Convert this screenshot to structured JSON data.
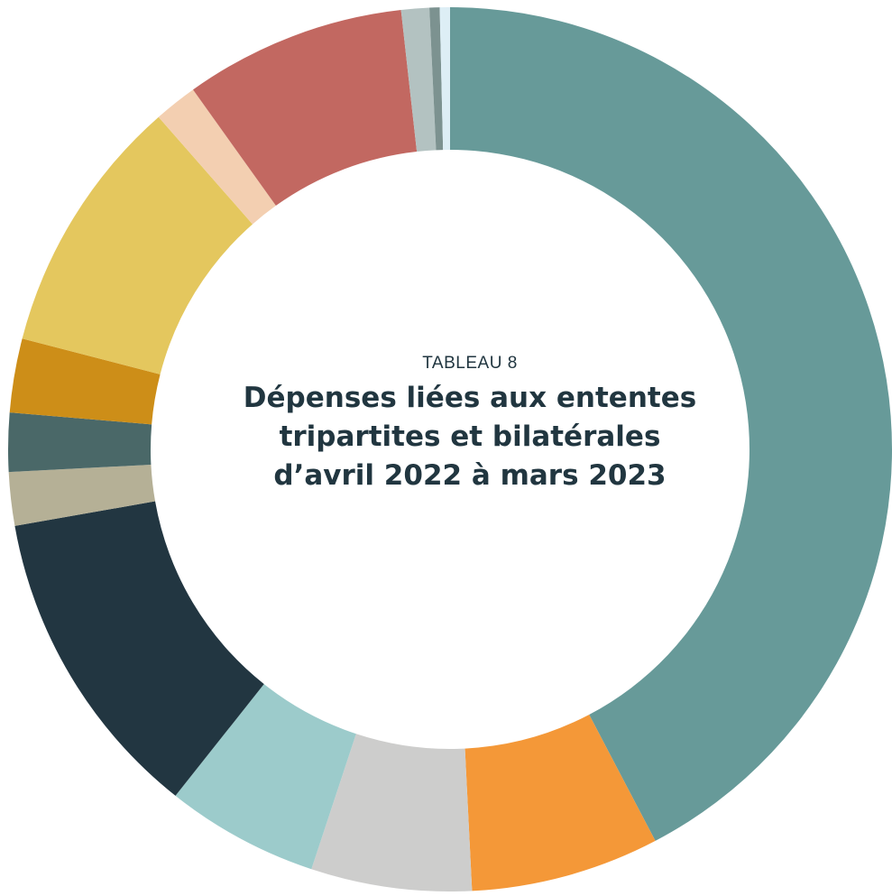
{
  "label_top": "TABLEAU 8",
  "title": "Dépenses liées aux ententes\ntripartites et bilatérales\nd’avril 2022 à mars 2023",
  "chart_data": {
    "type": "pie",
    "donut": true,
    "start_at": "top",
    "direction": "clockwise",
    "units": "percent of total (estimated)",
    "slices": [
      {
        "value": 45.4,
        "color": "#679a99"
      },
      {
        "value": 7.4,
        "color": "#f49838"
      },
      {
        "value": 6.3,
        "color": "#cdcdcc"
      },
      {
        "value": 6.0,
        "color": "#9ccbcb"
      },
      {
        "value": 12.4,
        "color": "#223641"
      },
      {
        "value": 2.1,
        "color": "#b5b096"
      },
      {
        "value": 2.3,
        "color": "#4a6868"
      },
      {
        "value": 2.9,
        "color": "#cd8e18"
      },
      {
        "value": 10.2,
        "color": "#e4c75e"
      },
      {
        "value": 1.7,
        "color": "#f3cfb1"
      },
      {
        "value": 8.7,
        "color": "#c26861"
      },
      {
        "value": 1.1,
        "color": "#b3c2c1"
      },
      {
        "value": 0.4,
        "color": "#7c9290"
      },
      {
        "value": 0.4,
        "color": "#ddeef5"
      }
    ]
  }
}
